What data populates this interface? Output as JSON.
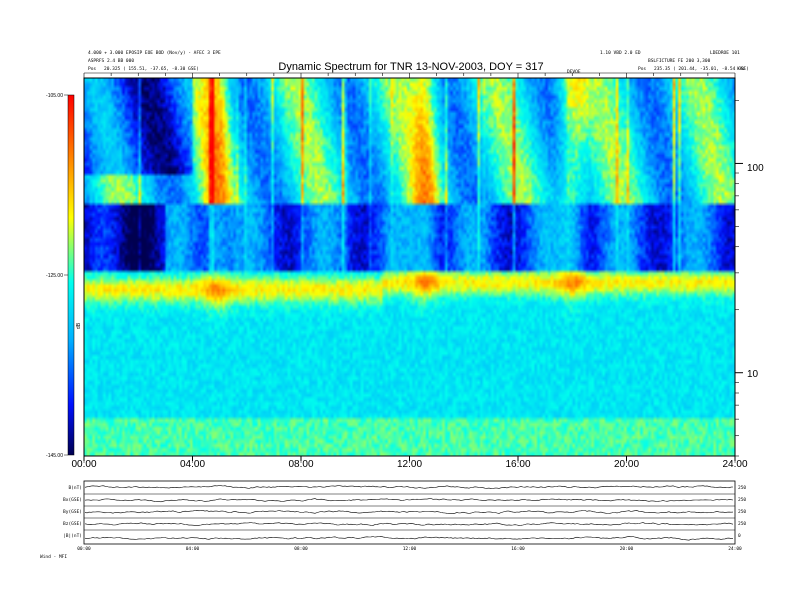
{
  "header": {
    "left_line1": "4.000 + 3.000 EPOSIP EOE BOD (Nov/y) - AFEC 3 EPE",
    "left_line2": "ASPRFS 2.4 BB 000",
    "left_pos_label": "Pos",
    "left_pos_value": "20.325 ( 155.51, -37.65, -8.30 GSE)",
    "right_line0": "1.10 VBD 2.0 ED",
    "right_line0b": "LDEDROE 101",
    "right_line1": "BSLFICTURE FE 200 3,300",
    "right_pos_label": "Pos",
    "right_pos_value": "235.35 ( 201.44, -35.01, -8.54 GSE)",
    "marker_label": "DEVOE",
    "corner_label": "kHz"
  },
  "chart_data": {
    "type": "heatmap",
    "title": "Dynamic Spectrum for TNR 13-NOV-2003, DOY = 317",
    "xlabel": "",
    "ylabel": "",
    "x_ticks": [
      "00:00",
      "04:00",
      "08:00",
      "12:00",
      "16:00",
      "20:00",
      "24:00"
    ],
    "xlim_hours": [
      0,
      24
    ],
    "y_scale": "log",
    "y_unit": "kHz",
    "y_ticks": [
      10,
      100
    ],
    "ylim_khz": [
      4,
      256
    ],
    "colorbar": {
      "label": "dB",
      "ticks": [
        "-105.00",
        "-125.00",
        "-145.00"
      ],
      "range": [
        -145,
        -105
      ],
      "colors": [
        "#000050",
        "#0010ff",
        "#00b0ff",
        "#00ffee",
        "#ffff00",
        "#ff8000",
        "#ff0000"
      ]
    },
    "band_split_khz": 64,
    "features": [
      {
        "name": "plasma line",
        "start_khz": 24,
        "end_khz": 27,
        "jump_hour": 11.0
      },
      {
        "name": "burst 04:50",
        "hour": 4.9
      },
      {
        "name": "burst 12:40",
        "hour": 12.6
      },
      {
        "name": "burst 18:00",
        "hour": 18.0
      }
    ]
  },
  "timeseries_panel": {
    "labels": [
      "B(nT)",
      "Bx(GSE)",
      "By(GSE)",
      "Bz(GSE)",
      "|B|(nT)"
    ],
    "right_ticks": [
      "250",
      "250",
      "250",
      "250",
      "0"
    ],
    "x_ticks": [
      "00:00",
      "04:00",
      "08:00",
      "12:00",
      "16:00",
      "20:00",
      "24:00"
    ],
    "footer": "Wind - MFI"
  }
}
